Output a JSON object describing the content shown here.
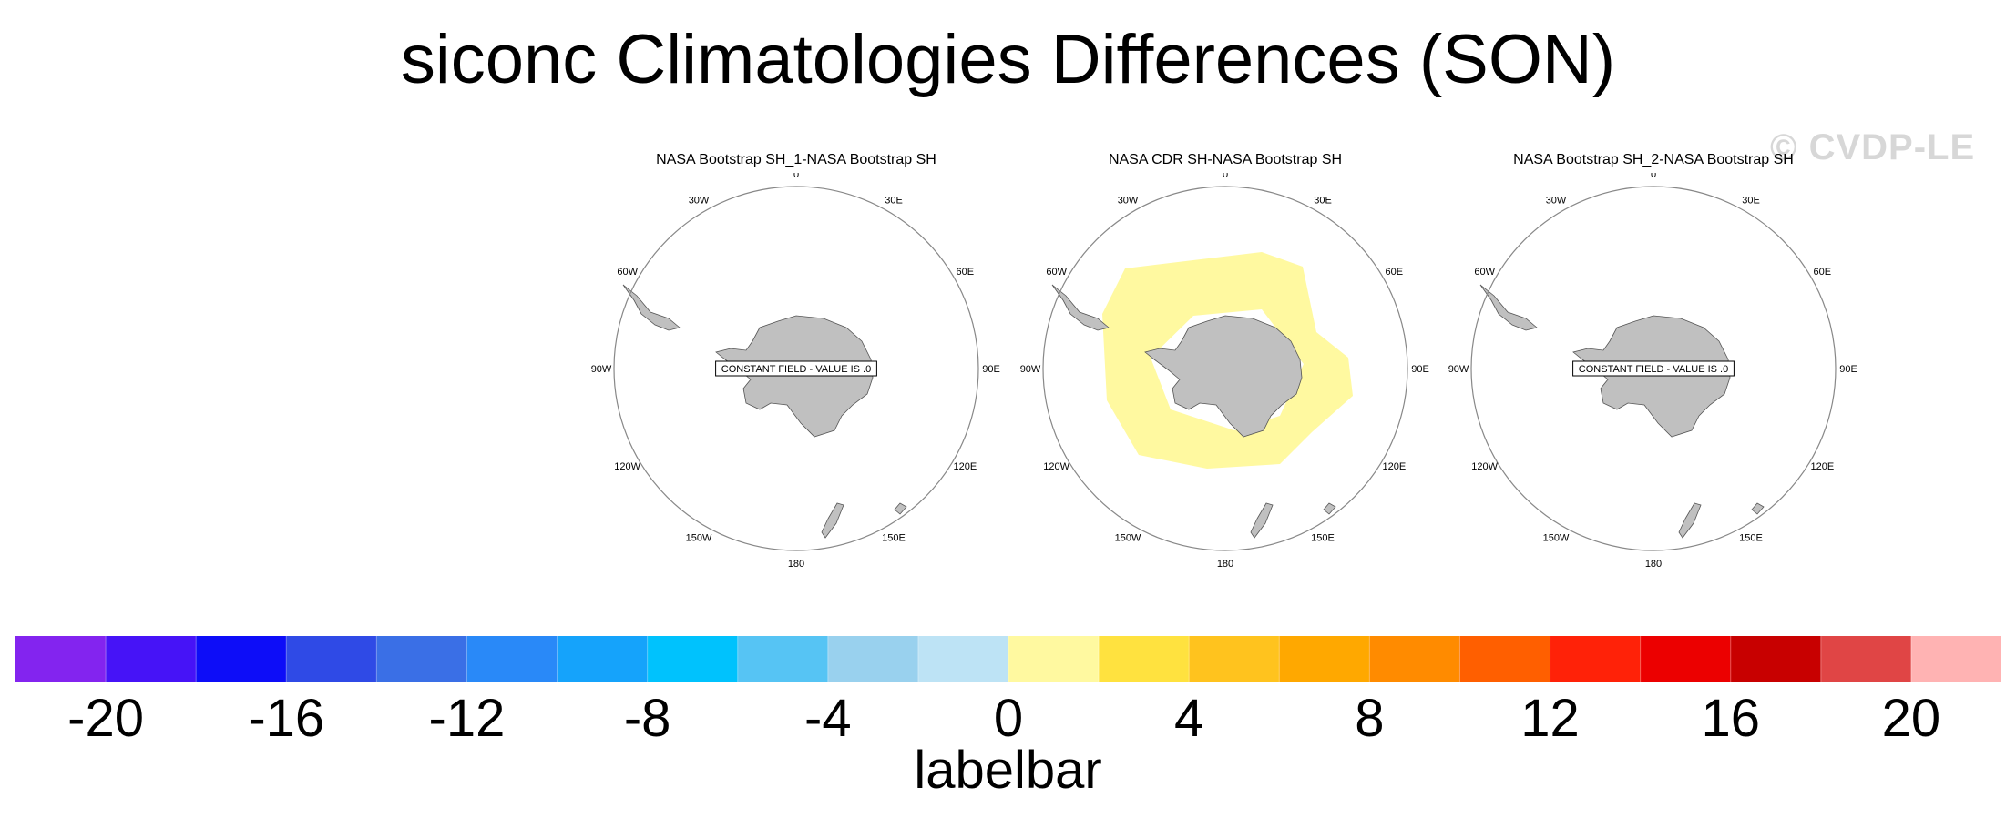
{
  "title": "siconc Climatologies Differences (SON)",
  "watermark": "© CVDP-LE",
  "chart_data": {
    "type": "heatmap",
    "title": "siconc Climatologies Differences (SON)",
    "projection": "south-polar stereographic",
    "panels": [
      {
        "title": "NASA Bootstrap SH_1-NASA Bootstrap SH",
        "constant_field": true,
        "constant_value": 0,
        "note": "CONSTANT FIELD - VALUE IS .0"
      },
      {
        "title": "NASA CDR SH-NASA Bootstrap SH",
        "constant_field": false,
        "field_range": [
          0,
          2
        ],
        "field_color": "#fff9a0",
        "note": ""
      },
      {
        "title": "NASA Bootstrap SH_2-NASA Bootstrap SH",
        "constant_field": true,
        "constant_value": 0,
        "note": "CONSTANT FIELD - VALUE IS .0"
      }
    ],
    "longitude_labels": [
      "0",
      "30E",
      "60E",
      "90E",
      "120E",
      "150E",
      "180",
      "150W",
      "120W",
      "90W",
      "60W",
      "30W"
    ],
    "colorbar": {
      "label": "labelbar",
      "range": [
        -22,
        22
      ],
      "interval": 2,
      "tick_values": [
        -20,
        -16,
        -12,
        -8,
        -4,
        0,
        4,
        8,
        12,
        16,
        20
      ],
      "tick_labels": [
        "-20",
        "-16",
        "-12",
        "-8",
        "-4",
        "0",
        "4",
        "8",
        "12",
        "16",
        "20"
      ],
      "colors": [
        "#8324ef",
        "#4613f7",
        "#0d0df8",
        "#2f4ae6",
        "#3a6fe6",
        "#2989f8",
        "#15a3fb",
        "#00c2fd",
        "#56c4f4",
        "#99d1ee",
        "#bde3f5",
        "#fff9a0",
        "#ffe23f",
        "#ffc31e",
        "#ffa800",
        "#ff8b00",
        "#ff5f00",
        "#ff2208",
        "#ec0000",
        "#c80000",
        "#e04545",
        "#ffb3b3"
      ]
    }
  },
  "colors": {
    "land": "#c0c0c0",
    "coast": "#555555",
    "frame": "#888888"
  }
}
